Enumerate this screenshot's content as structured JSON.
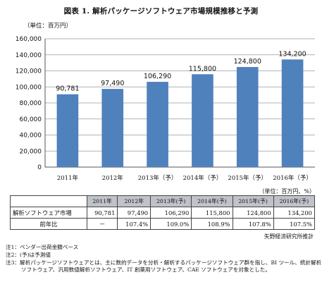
{
  "title": "図表 1. 解析パッケージソフトウェア市場規模推移と予測",
  "unit_chart": "（単位：百万円）",
  "unit_table": "（単位：百万円、%）",
  "source": "矢野経済研究所推計",
  "chart_data": {
    "type": "bar",
    "categories": [
      "2011年",
      "2012年",
      "2013年（予）",
      "2014年（予）",
      "2015年（予）",
      "2016年（予）"
    ],
    "values": [
      90781,
      97490,
      106290,
      115800,
      124800,
      134200
    ],
    "value_labels": [
      "90,781",
      "97,490",
      "106,290",
      "115,800",
      "124,800",
      "134,200"
    ],
    "yticks": [
      "0",
      "20,000",
      "40,000",
      "60,000",
      "80,000",
      "100,000",
      "120,000",
      "140,000",
      "160,000"
    ],
    "ylim": [
      0,
      160000
    ],
    "grid": true,
    "bar_color": "#4f81bd"
  },
  "table": {
    "headers": [
      "",
      "2011年",
      "2012年",
      "2013年(予)",
      "2014年(予)",
      "2015年(予)",
      "2016年(予)"
    ],
    "rows": [
      {
        "label": "解析ソフトウェア市場",
        "cells": [
          "90,781",
          "97,490",
          "106,290",
          "115,800",
          "124,800",
          "134,200"
        ]
      },
      {
        "label": "前年比",
        "cells": [
          "－",
          "107.4%",
          "109.0%",
          "108.9%",
          "107.8%",
          "107.5%"
        ]
      }
    ]
  },
  "notes": [
    "注1：ベンダー出荷金額ベース",
    "注2：(予)は予測値",
    "注3：解析パッケージソフトウェアとは、主に数的データを分析・解析するパッケージソフトウェア群を指し、BI ツール、統計解析",
    "ソフトウェア、汎用数値解析ソフトウェア、IT 創薬用ソフトウェア、CAE ソフトウェアを対象とした。"
  ]
}
